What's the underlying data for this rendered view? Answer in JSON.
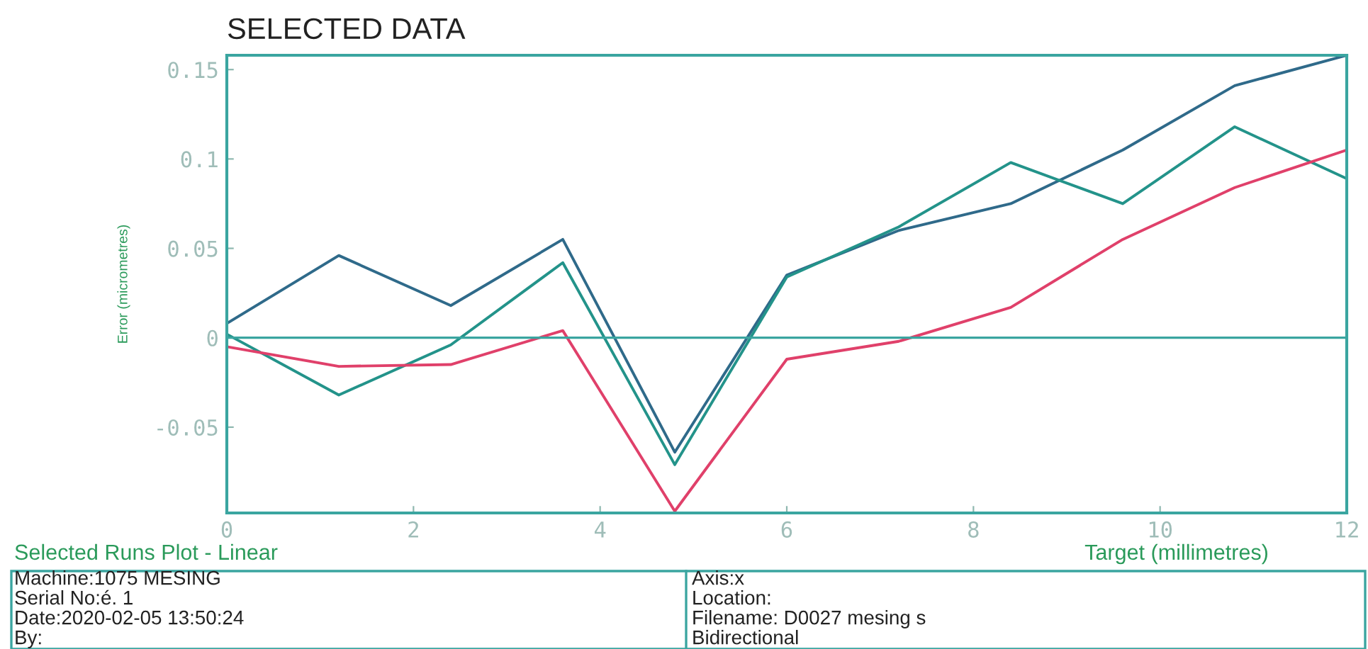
{
  "chart_data": {
    "type": "line",
    "title": "SELECTED DATA",
    "xlabel": "Target (millimetres)",
    "ylabel": "Error (micrometres)",
    "x": [
      0,
      1.2,
      2.4,
      3.6,
      4.8,
      6,
      7.2,
      8.4,
      9.6,
      10.8,
      12
    ],
    "series": [
      {
        "color": "#2f6a8a",
        "values": [
          0.008,
          0.046,
          0.018,
          0.055,
          -0.064,
          0.035,
          0.06,
          0.075,
          0.105,
          0.141,
          0.158
        ]
      },
      {
        "color": "#23938a",
        "values": [
          0.002,
          -0.032,
          -0.004,
          0.042,
          -0.071,
          0.034,
          0.062,
          0.098,
          0.075,
          0.118,
          0.089
        ]
      },
      {
        "color": "#e0406a",
        "values": [
          -0.005,
          -0.016,
          -0.015,
          0.004,
          -0.097,
          -0.012,
          -0.002,
          0.017,
          0.055,
          0.084,
          0.105
        ]
      }
    ],
    "xlim": [
      0,
      12
    ],
    "ylim": [
      -0.098,
      0.158
    ],
    "xticks": [
      0,
      2,
      4,
      6,
      8,
      10,
      12
    ],
    "yticks": [
      -0.05,
      0,
      0.05,
      0.1,
      0.15
    ],
    "ref_lines": [
      {
        "axis": "y",
        "value": 0,
        "color": "#3aa5a0"
      }
    ],
    "grid": false,
    "legend": false,
    "marker": "none",
    "line_style": "solid",
    "annotations": [
      "Selected Runs Plot - Linear",
      "Machine:1075 MESING",
      "Serial No:é. 1",
      "Date:2020-02-05 13:50:24",
      "By:",
      "Axis:x",
      "Location:",
      "Filename: D0027 mesing s",
      "Bidirectional"
    ]
  }
}
